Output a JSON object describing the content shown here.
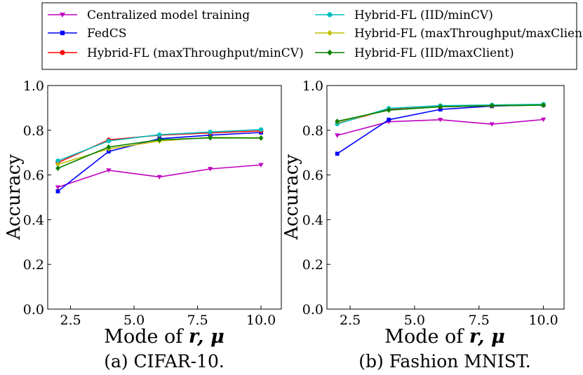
{
  "legend": {
    "entries": [
      {
        "key": "centralized",
        "label": "Centralized model training",
        "color": "#bf00bf",
        "marker": "triangle-down"
      },
      {
        "key": "fedcs",
        "label": "FedCS",
        "color": "#0000ff",
        "marker": "square"
      },
      {
        "key": "hfl_maxtp_mincv",
        "label": "Hybrid-FL (maxThroughput/minCV)",
        "color": "#ff0000",
        "marker": "circle"
      },
      {
        "key": "hfl_iid_mincv",
        "label": "Hybrid-FL (IID/minCV)",
        "color": "#00bfbf",
        "marker": "circle"
      },
      {
        "key": "hfl_maxtp_maxclient",
        "label": "Hybrid-FL (maxThroughput/maxClient)",
        "color": "#bfbf00",
        "marker": "diamond"
      },
      {
        "key": "hfl_iid_maxclient",
        "label": "Hybrid-FL (IID/maxClient)",
        "color": "#008000",
        "marker": "diamond"
      }
    ]
  },
  "chart_data": [
    {
      "type": "line",
      "title": "",
      "caption": "(a) CIFAR-10.",
      "xlabel": "Mode of r, μ",
      "xlabel_main": "Mode of ",
      "xlabel_r": "r",
      "xlabel_mu": ", μ",
      "ylabel": "Accuracy",
      "x": [
        2,
        4,
        6,
        8,
        10
      ],
      "xlim": [
        1.6,
        10.8
      ],
      "ylim": [
        0.0,
        1.0
      ],
      "xticks": [
        2.5,
        5.0,
        7.5,
        10.0
      ],
      "xtick_labels": [
        "2.5",
        "5.0",
        "7.5",
        "10.0"
      ],
      "yticks": [
        0.0,
        0.2,
        0.4,
        0.6,
        0.8,
        1.0
      ],
      "ytick_labels": [
        "0.0",
        "0.2",
        "0.4",
        "0.6",
        "0.8",
        "1.0"
      ],
      "grid": false,
      "series": [
        {
          "key": "centralized",
          "name": "Centralized model training",
          "values": [
            0.545,
            0.621,
            0.591,
            0.627,
            0.645
          ]
        },
        {
          "key": "fedcs",
          "name": "FedCS",
          "values": [
            0.527,
            0.705,
            0.762,
            0.778,
            0.79
          ]
        },
        {
          "key": "hfl_maxtp_mincv",
          "name": "Hybrid-FL (maxThroughput/minCV)",
          "values": [
            0.655,
            0.757,
            0.778,
            0.788,
            0.797
          ]
        },
        {
          "key": "hfl_iid_mincv",
          "name": "Hybrid-FL (IID/minCV)",
          "values": [
            0.663,
            0.752,
            0.78,
            0.792,
            0.803
          ]
        },
        {
          "key": "hfl_maxtp_maxclient",
          "name": "Hybrid-FL (maxThroughput/maxClient)",
          "values": [
            0.647,
            0.717,
            0.752,
            0.768,
            0.766
          ]
        },
        {
          "key": "hfl_iid_maxclient",
          "name": "Hybrid-FL (IID/maxClient)",
          "values": [
            0.63,
            0.725,
            0.757,
            0.766,
            0.765
          ]
        }
      ]
    },
    {
      "type": "line",
      "title": "",
      "caption": "(b) Fashion MNIST.",
      "xlabel": "Mode of r, μ",
      "xlabel_main": "Mode of ",
      "xlabel_r": "r",
      "xlabel_mu": ", μ",
      "ylabel": "Accuracy",
      "x": [
        2,
        4,
        6,
        8,
        10
      ],
      "xlim": [
        1.6,
        10.8
      ],
      "ylim": [
        0.0,
        1.0
      ],
      "xticks": [
        2.5,
        5.0,
        7.5,
        10.0
      ],
      "xtick_labels": [
        "2.5",
        "5.0",
        "7.5",
        "10.0"
      ],
      "yticks": [
        0.0,
        0.2,
        0.4,
        0.6,
        0.8,
        1.0
      ],
      "ytick_labels": [
        "0.0",
        "0.2",
        "0.4",
        "0.6",
        "0.8",
        "1.0"
      ],
      "grid": false,
      "series": [
        {
          "key": "centralized",
          "name": "Centralized model training",
          "values": [
            0.777,
            0.838,
            0.847,
            0.827,
            0.848
          ]
        },
        {
          "key": "fedcs",
          "name": "FedCS",
          "values": [
            0.695,
            0.847,
            0.893,
            0.908,
            0.913
          ]
        },
        {
          "key": "hfl_maxtp_mincv",
          "name": "Hybrid-FL (maxThroughput/minCV)",
          "values": [
            0.83,
            0.893,
            0.905,
            0.91,
            0.913
          ]
        },
        {
          "key": "hfl_iid_mincv",
          "name": "Hybrid-FL (IID/minCV)",
          "values": [
            0.828,
            0.898,
            0.91,
            0.913,
            0.916
          ]
        },
        {
          "key": "hfl_maxtp_maxclient",
          "name": "Hybrid-FL (maxThroughput/maxClient)",
          "values": [
            0.838,
            0.89,
            0.905,
            0.91,
            0.912
          ]
        },
        {
          "key": "hfl_iid_maxclient",
          "name": "Hybrid-FL (IID/maxClient)",
          "values": [
            0.84,
            0.89,
            0.905,
            0.91,
            0.912
          ]
        }
      ]
    }
  ]
}
